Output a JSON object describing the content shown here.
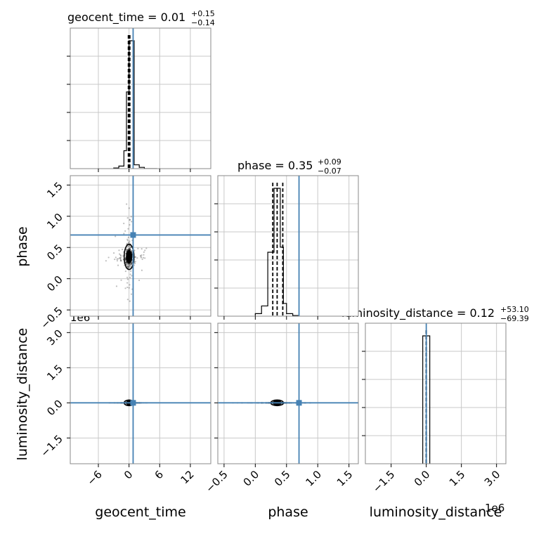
{
  "chart_data": {
    "type": "corner",
    "params": [
      "geocent_time",
      "phase",
      "luminosity_distance"
    ],
    "titles": [
      {
        "name": "geocent_time",
        "median": "0.01",
        "plus": "+0.15",
        "minus": "−0.14"
      },
      {
        "name": "phase",
        "median": "0.35",
        "plus": "+0.09",
        "minus": "−0.07"
      },
      {
        "name": "luminosity_distance",
        "median": "0.12",
        "plus": "+53.10",
        "minus": "−69.39"
      }
    ],
    "axis_ranges": {
      "geocent_time": [
        -11.5,
        16
      ],
      "phase": [
        -0.6,
        1.65
      ],
      "luminosity_distance": [
        -2600000,
        3400000
      ]
    },
    "ticks": {
      "geocent_time": {
        "values": [
          -6,
          0,
          6,
          12
        ],
        "labels": [
          "−6",
          "0",
          "6",
          "12"
        ]
      },
      "phase": {
        "values": [
          -0.5,
          0.0,
          0.5,
          1.0,
          1.5
        ],
        "labels": [
          "−0.5",
          "0.0",
          "0.5",
          "1.0",
          "1.5"
        ]
      },
      "luminosity_distance": {
        "values": [
          -1500000,
          0,
          1500000,
          3000000
        ],
        "labels": [
          "−1.5",
          "0.0",
          "1.5",
          "3.0"
        ]
      }
    },
    "offset_text": "1e6",
    "truth": {
      "geocent_time": 0.8,
      "phase": 0.7,
      "luminosity_distance": 0
    },
    "quantiles": {
      "geocent_time": [
        -0.13,
        0.01,
        0.16
      ],
      "phase": [
        0.28,
        0.35,
        0.44
      ],
      "luminosity_distance": [
        -69.27,
        0.12,
        53.22
      ]
    },
    "histograms": {
      "geocent_time": {
        "edges": [
          -3.0,
          -2.0,
          -1.0,
          -0.5,
          0.0,
          0.5,
          1.0,
          2.0,
          3.0,
          5.5
        ],
        "counts": [
          0.5,
          2,
          14,
          60,
          100,
          100,
          3,
          1,
          0
        ]
      },
      "phase": {
        "edges": [
          0.0,
          0.1,
          0.2,
          0.25,
          0.3,
          0.35,
          0.4,
          0.45,
          0.5,
          0.6,
          0.7
        ],
        "counts": [
          2,
          8,
          50,
          50,
          100,
          100,
          54,
          10,
          2,
          0.5
        ]
      },
      "luminosity_distance": {
        "edges": [
          -150000,
          150000
        ],
        "counts": [
          100
        ]
      }
    },
    "grid": true,
    "truth_color": "#4682b4",
    "hist_color": "#000000"
  }
}
